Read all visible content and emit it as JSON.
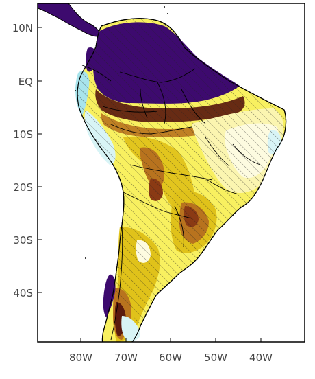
{
  "map": {
    "lat_labels": [
      "10N",
      "EQ",
      "10S",
      "20S",
      "30S",
      "40S"
    ],
    "lon_labels": [
      "80W",
      "70W",
      "60W",
      "50W",
      "40W"
    ],
    "colors": {
      "purple": "#3d0a6e",
      "dark_brown": "#5a1a0e",
      "brown": "#8a3a14",
      "orange_brown": "#b8731e",
      "gold": "#e0c21a",
      "yellow": "#f8f060",
      "pale_yellow": "#fbf5b0",
      "cream": "#fdfbe0",
      "light_cyan": "#d8f4f6",
      "cyan": "#a8e4ec",
      "outside": "#ffffff"
    }
  }
}
